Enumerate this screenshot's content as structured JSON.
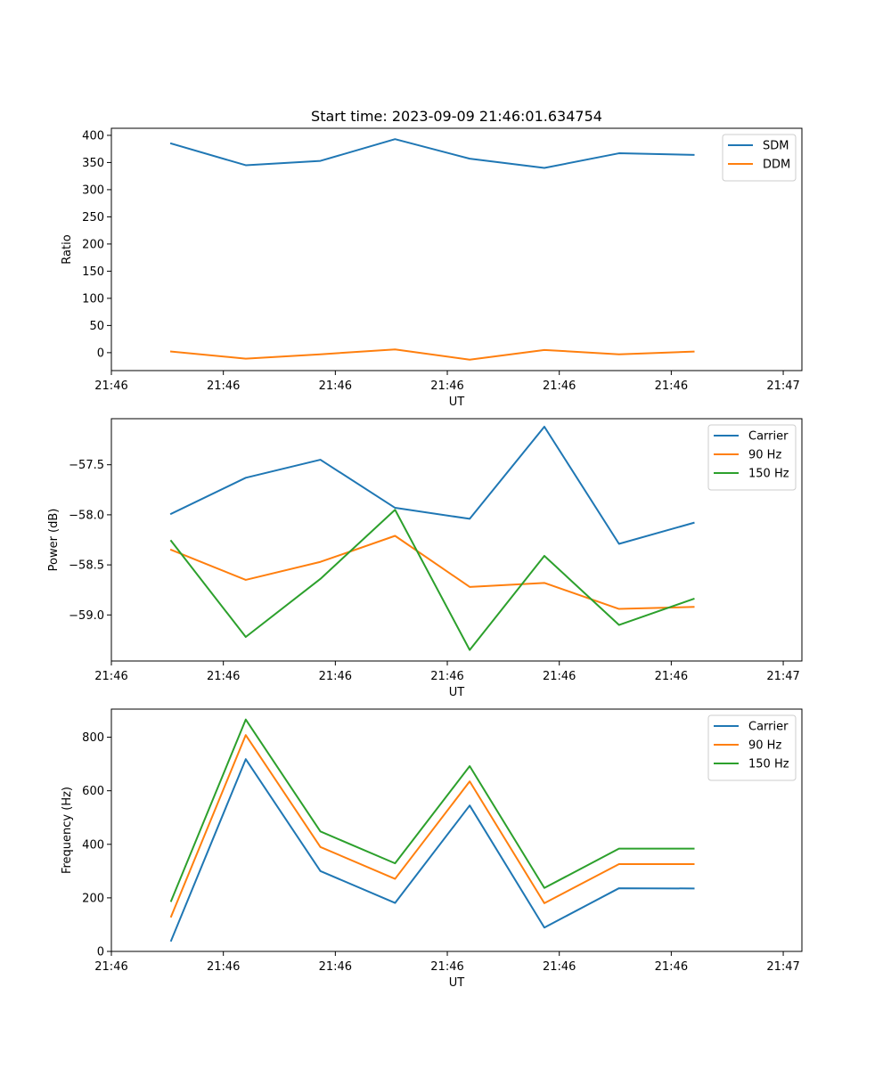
{
  "figure_title": "Start time: 2023-09-09 21:46:01.634754",
  "colors": {
    "blue": "#1f77b4",
    "orange": "#ff7f0e",
    "green": "#2ca02c"
  },
  "chart_data": [
    {
      "type": "line",
      "title": "Start time: 2023-09-09 21:46:01.634754",
      "xlabel": "UT",
      "ylabel": "Ratio",
      "x": [
        1,
        2,
        3,
        4,
        5,
        6,
        7,
        8
      ],
      "xlim": [
        0.2,
        9.45
      ],
      "xtick_positions": [
        0.2,
        1.7,
        3.2,
        4.7,
        6.2,
        7.7,
        9.2
      ],
      "xtick_labels": [
        "21:46",
        "21:46",
        "21:46",
        "21:46",
        "21:46",
        "21:46",
        "21:47"
      ],
      "ylim": [
        -33,
        413
      ],
      "yticks": [
        0,
        50,
        100,
        150,
        200,
        250,
        300,
        350,
        400
      ],
      "ytick_labels": [
        "0",
        "50",
        "100",
        "150",
        "200",
        "250",
        "300",
        "350",
        "400"
      ],
      "legend_position": "top-right",
      "series": [
        {
          "name": "SDM",
          "color": "#1f77b4",
          "values": [
            385,
            345,
            353,
            393,
            357,
            340,
            367,
            364
          ]
        },
        {
          "name": "DDM",
          "color": "#ff7f0e",
          "values": [
            2,
            -11,
            -3,
            6,
            -13,
            5,
            -3,
            2
          ]
        }
      ]
    },
    {
      "type": "line",
      "title": "",
      "xlabel": "UT",
      "ylabel": "Power (dB)",
      "x": [
        1,
        2,
        3,
        4,
        5,
        6,
        7,
        8
      ],
      "xlim": [
        0.2,
        9.45
      ],
      "xtick_positions": [
        0.2,
        1.7,
        3.2,
        4.7,
        6.2,
        7.7,
        9.2
      ],
      "xtick_labels": [
        "21:46",
        "21:46",
        "21:46",
        "21:46",
        "21:46",
        "21:46",
        "21:47"
      ],
      "ylim": [
        -59.46,
        -57.04
      ],
      "yticks": [
        -59.0,
        -58.5,
        -58.0,
        -57.5
      ],
      "ytick_labels": [
        "−59.0",
        "−58.5",
        "−58.0",
        "−57.5"
      ],
      "legend_position": "top-right",
      "series": [
        {
          "name": "Carrier",
          "color": "#1f77b4",
          "values": [
            -57.99,
            -57.63,
            -57.45,
            -57.93,
            -58.04,
            -57.12,
            -58.29,
            -58.08
          ]
        },
        {
          "name": "90 Hz",
          "color": "#ff7f0e",
          "values": [
            -58.35,
            -58.65,
            -58.47,
            -58.21,
            -58.72,
            -58.68,
            -58.94,
            -58.92
          ]
        },
        {
          "name": "150 Hz",
          "color": "#2ca02c",
          "values": [
            -58.26,
            -59.22,
            -58.64,
            -57.95,
            -59.35,
            -58.41,
            -59.1,
            -58.84
          ]
        }
      ]
    },
    {
      "type": "line",
      "title": "",
      "xlabel": "UT",
      "ylabel": "Frequency (Hz)",
      "x": [
        1,
        2,
        3,
        4,
        5,
        6,
        7,
        8
      ],
      "xlim": [
        0.2,
        9.45
      ],
      "xtick_positions": [
        0.2,
        1.7,
        3.2,
        4.7,
        6.2,
        7.7,
        9.2
      ],
      "xtick_labels": [
        "21:46",
        "21:46",
        "21:46",
        "21:46",
        "21:46",
        "21:46",
        "21:47"
      ],
      "ylim": [
        0,
        905
      ],
      "yticks": [
        0,
        200,
        400,
        600,
        800
      ],
      "ytick_labels": [
        "0",
        "200",
        "400",
        "600",
        "800"
      ],
      "legend_position": "top-right",
      "series": [
        {
          "name": "Carrier",
          "color": "#1f77b4",
          "values": [
            40,
            718,
            300,
            181,
            545,
            89,
            236,
            235
          ]
        },
        {
          "name": "90 Hz",
          "color": "#ff7f0e",
          "values": [
            130,
            808,
            390,
            271,
            635,
            180,
            326,
            326
          ]
        },
        {
          "name": "150 Hz",
          "color": "#2ca02c",
          "values": [
            188,
            866,
            448,
            329,
            692,
            237,
            384,
            384
          ]
        }
      ]
    }
  ]
}
